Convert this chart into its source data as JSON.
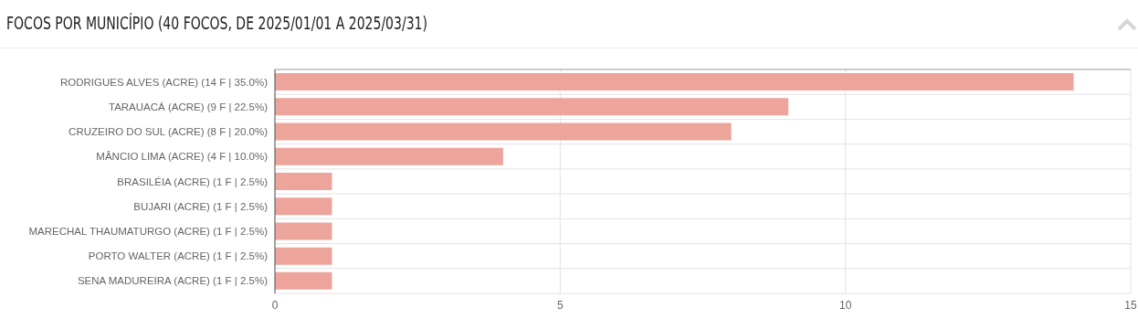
{
  "chart_data": {
    "type": "bar",
    "orientation": "horizontal",
    "title": "FOCOS POR MUNICÍPIO (40 FOCOS, DE 2025/01/01 A 2025/03/31)",
    "categories": [
      "RODRIGUES ALVES (ACRE) (14 F | 35.0%)",
      "TARAUACÁ (ACRE) (9 F | 22.5%)",
      "CRUZEIRO DO SUL (ACRE) (8 F | 20.0%)",
      "MÂNCIO LIMA (ACRE) (4 F | 10.0%)",
      "BRASILÉIA (ACRE) (1 F | 2.5%)",
      "BUJARI (ACRE) (1 F | 2.5%)",
      "MARECHAL THAUMATURGO (ACRE) (1 F | 2.5%)",
      "PORTO WALTER (ACRE) (1 F | 2.5%)",
      "SENA MADUREIRA (ACRE) (1 F | 2.5%)"
    ],
    "values": [
      14,
      9,
      8,
      4,
      1,
      1,
      1,
      1,
      1
    ],
    "color": "#eca49b",
    "xlim": [
      0,
      15
    ],
    "xticks": [
      0,
      5,
      10,
      15
    ],
    "grid": true
  }
}
